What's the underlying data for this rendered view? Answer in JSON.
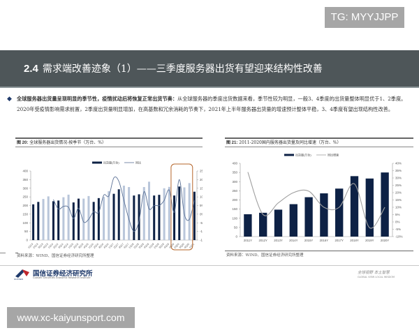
{
  "watermarks": {
    "top": "TG: MYYJJPP",
    "bottom": "www.xc-kaiyunsport.com"
  },
  "header": {
    "section_number": "2.4",
    "title": "需求端改善迹象（1）——三季度服务器出货有望迎来结构性改善"
  },
  "bullet": {
    "bold_lead": "全球服务器出货量呈现明显的季节性，疫情扰动后将恢复正常出货节奏：",
    "text": "从全球服务器的季度出货数据来看，季节性较为明显，一般3、4季度的出货量整体明显优于1、2季度。2020年受疫情影响需求前置，2季度出货量明显增加，在高基数和冗余消耗的节奏下，2021年上半年服务器出货量的增速预计整体平稳，3、4季度有望出现结构性改善。"
  },
  "colors": {
    "band": "#4e5659",
    "dark_bar": "#0d2145",
    "light_bar": "#b9c6da",
    "line": "#5b7196",
    "line2": "#a0a0a0",
    "highlight_box": "#b5652a"
  },
  "figure20": {
    "label": "图 20:",
    "title": "全球服务器出货情况-按季节（万台、%）",
    "legend": [
      "出货量(万台)",
      "同比"
    ],
    "source": "资料来源：WIND、国信证券经济研究所整理"
  },
  "figure21": {
    "label": "图 21:",
    "title": "2011-2020国内服务器出货量及同比增速（万台、%）",
    "legend": [
      "出货量(万台)",
      "同比增速"
    ],
    "source": "资料来源：WIND、国信证券经济研究所整理"
  },
  "footer": {
    "logo_cn": "国信证券经济研究所",
    "logo_en": "Guosen Securities Economic Research Institute",
    "logo_badge": "GUOSEN",
    "slogan_cn": "全球视野  本土智慧",
    "slogan_en": "GLOBAL VIEW  LOCAL WISDOM"
  },
  "chart_data": [
    {
      "type": "bar",
      "title": "全球服务器出货情况-按季节（万台、%）",
      "xlabel": "",
      "ylabel": "出货量(万台)",
      "ylim": [
        0,
        400
      ],
      "y2lim": [
        -15,
        25
      ],
      "yticks": [
        0,
        50,
        100,
        150,
        200,
        250,
        300,
        350,
        400
      ],
      "y2ticks": [
        "-15%",
        "-10%",
        "-5%",
        "0%",
        "5%",
        "10%",
        "15%",
        "20%",
        "25%"
      ],
      "legend_position": "top",
      "grid": false,
      "categories": [
        "1Q13",
        "2Q13",
        "3Q13",
        "4Q13",
        "1Q14",
        "2Q14",
        "3Q14",
        "4Q14",
        "1Q15",
        "2Q15",
        "3Q15",
        "4Q15",
        "1Q16",
        "2Q16",
        "3Q16",
        "4Q16",
        "1Q17",
        "2Q17",
        "3Q17",
        "4Q17",
        "1Q18",
        "2Q18",
        "3Q18",
        "4Q18",
        "1Q19",
        "2Q19",
        "3Q19",
        "4Q19",
        "1Q20",
        "2Q20",
        "3Q20",
        "4Q20",
        "1Q21"
      ],
      "series": [
        {
          "name": "出货量(万台)",
          "kind": "bar",
          "values": [
            207,
            221,
            238,
            253,
            225,
            229,
            248,
            263,
            218,
            240,
            240,
            255,
            221,
            243,
            250,
            283,
            268,
            294,
            315,
            307,
            258,
            265,
            307,
            338,
            258,
            262,
            300,
            308,
            258,
            310,
            305,
            330,
            280
          ]
        },
        {
          "name": "同比",
          "kind": "line",
          "axis": "right",
          "values": [
            null,
            null,
            null,
            null,
            8.5,
            3,
            4.5,
            4,
            -2.5,
            3.5,
            -4.5,
            -3,
            1.5,
            1,
            11,
            10.5,
            21,
            19,
            8,
            -3,
            -10,
            -4,
            13,
            3,
            5,
            5,
            8,
            14,
            1,
            20,
            0,
            -3,
            8
          ]
        }
      ],
      "annotations": [
        "highlight box around 1Q20–4Q20"
      ]
    },
    {
      "type": "bar",
      "title": "2011-2020国内服务器出货量及同比增速（万台、%）",
      "xlabel": "",
      "ylabel": "出货量(万台)",
      "ylim": [
        0,
        400
      ],
      "y2lim": [
        -10,
        40
      ],
      "yticks": [
        0,
        50,
        100,
        150,
        200,
        250,
        300,
        350,
        400
      ],
      "y2ticks": [
        "-10%",
        "-5%",
        "0%",
        "5%",
        "10%",
        "15%",
        "20%",
        "25%",
        "30%",
        "35%",
        "40%"
      ],
      "legend_position": "top",
      "grid": false,
      "categories": [
        "2011Y",
        "2012Y",
        "2013Y",
        "2014Y",
        "2015Y",
        "2016Y",
        "2017Y",
        "2018Y",
        "2019Y",
        "2020Y"
      ],
      "series": [
        {
          "name": "出货量(万台)",
          "kind": "bar",
          "values": [
            122,
            130,
            147,
            177,
            215,
            236,
            262,
            330,
            317,
            350
          ]
        },
        {
          "name": "同比增速",
          "kind": "line",
          "axis": "right",
          "values": [
            34,
            5,
            13,
            20,
            21,
            10,
            10,
            26,
            -4,
            10
          ]
        }
      ]
    }
  ]
}
